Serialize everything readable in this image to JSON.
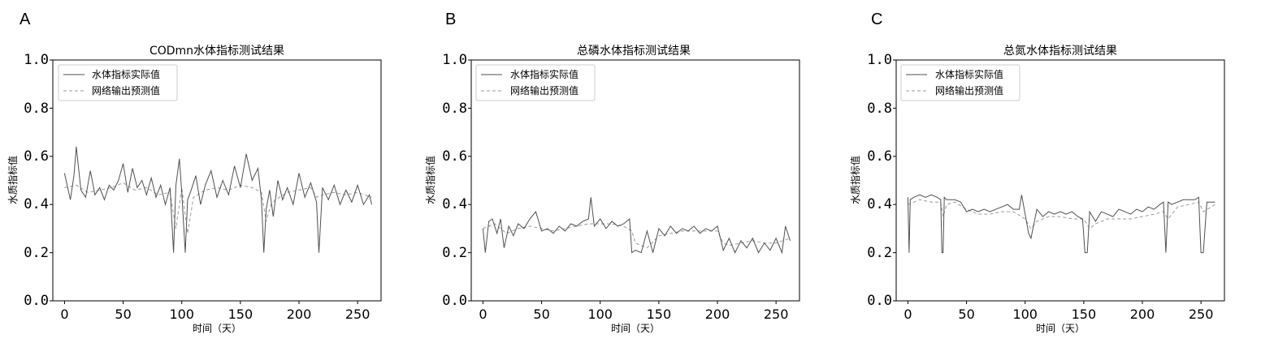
{
  "panels": [
    {
      "letter": "A",
      "title": "CODmn水体指标测试结果"
    },
    {
      "letter": "B",
      "title": "总磷水体指标测试结果"
    },
    {
      "letter": "C",
      "title": "总氮水体指标测试结果"
    }
  ],
  "legend": {
    "actual": "水体指标实际值",
    "predicted": "网络输出预测值"
  },
  "colors": {
    "actual": "#505050",
    "predicted": "#9a9a9a",
    "axis": "#000000"
  },
  "chart_data": [
    {
      "type": "line",
      "title": "CODmn水体指标测试结果",
      "xlabel": "时间（天）",
      "ylabel": "水质指标值",
      "xlim": [
        -10,
        270
      ],
      "ylim": [
        0.0,
        1.0
      ],
      "xticks": [
        0,
        50,
        100,
        150,
        200,
        250
      ],
      "yticks": [
        "0.0",
        "0.2",
        "0.4",
        "0.6",
        "0.8",
        "1.0"
      ],
      "legend_position": "top-left",
      "series": [
        {
          "name": "水体指标实际值",
          "style": "solid",
          "x": [
            0,
            5,
            8,
            10,
            14,
            18,
            22,
            26,
            30,
            34,
            38,
            42,
            46,
            50,
            54,
            58,
            62,
            66,
            70,
            74,
            78,
            82,
            86,
            90,
            93,
            95,
            98,
            100,
            103,
            105,
            108,
            112,
            116,
            120,
            125,
            130,
            135,
            140,
            145,
            150,
            155,
            160,
            165,
            168,
            170,
            172,
            175,
            178,
            182,
            186,
            190,
            195,
            200,
            205,
            210,
            215,
            217,
            220,
            225,
            230,
            235,
            240,
            245,
            250,
            255,
            260,
            262
          ],
          "y": [
            0.53,
            0.42,
            0.52,
            0.64,
            0.46,
            0.43,
            0.54,
            0.44,
            0.47,
            0.42,
            0.48,
            0.46,
            0.5,
            0.57,
            0.45,
            0.55,
            0.47,
            0.5,
            0.44,
            0.51,
            0.43,
            0.48,
            0.4,
            0.47,
            0.2,
            0.48,
            0.59,
            0.45,
            0.2,
            0.42,
            0.46,
            0.52,
            0.4,
            0.48,
            0.54,
            0.43,
            0.5,
            0.44,
            0.56,
            0.47,
            0.61,
            0.5,
            0.55,
            0.42,
            0.2,
            0.38,
            0.46,
            0.35,
            0.5,
            0.42,
            0.47,
            0.4,
            0.53,
            0.43,
            0.49,
            0.41,
            0.2,
            0.47,
            0.42,
            0.48,
            0.4,
            0.46,
            0.41,
            0.48,
            0.4,
            0.44,
            0.4
          ]
        },
        {
          "name": "网络输出预测值",
          "style": "dashed",
          "x": [
            0,
            10,
            20,
            30,
            40,
            50,
            60,
            70,
            80,
            90,
            95,
            100,
            105,
            110,
            120,
            130,
            140,
            150,
            160,
            168,
            172,
            176,
            180,
            190,
            200,
            210,
            215,
            220,
            230,
            240,
            250,
            262
          ],
          "y": [
            0.47,
            0.48,
            0.45,
            0.46,
            0.47,
            0.49,
            0.46,
            0.47,
            0.44,
            0.45,
            0.3,
            0.47,
            0.28,
            0.43,
            0.46,
            0.47,
            0.46,
            0.48,
            0.47,
            0.45,
            0.33,
            0.4,
            0.42,
            0.45,
            0.46,
            0.47,
            0.43,
            0.44,
            0.45,
            0.44,
            0.45,
            0.43
          ]
        }
      ]
    },
    {
      "type": "line",
      "title": "总磷水体指标测试结果",
      "xlabel": "时间（天）",
      "ylabel": "水质指标值",
      "xlim": [
        -10,
        270
      ],
      "ylim": [
        0.0,
        1.0
      ],
      "xticks": [
        0,
        50,
        100,
        150,
        200,
        250
      ],
      "yticks": [
        "0.0",
        "0.2",
        "0.4",
        "0.6",
        "0.8",
        "1.0"
      ],
      "legend_position": "top-left",
      "series": [
        {
          "name": "水体指标实际值",
          "style": "solid",
          "x": [
            0,
            2,
            5,
            8,
            12,
            15,
            18,
            22,
            26,
            30,
            35,
            40,
            45,
            50,
            55,
            60,
            65,
            70,
            75,
            80,
            85,
            90,
            92,
            95,
            100,
            105,
            110,
            115,
            120,
            125,
            127,
            130,
            135,
            140,
            145,
            150,
            155,
            160,
            165,
            170,
            175,
            180,
            185,
            190,
            195,
            200,
            205,
            210,
            215,
            220,
            225,
            230,
            235,
            240,
            245,
            250,
            255,
            258,
            262
          ],
          "y": [
            0.3,
            0.2,
            0.33,
            0.34,
            0.28,
            0.34,
            0.22,
            0.31,
            0.27,
            0.32,
            0.3,
            0.34,
            0.37,
            0.29,
            0.3,
            0.28,
            0.31,
            0.29,
            0.32,
            0.31,
            0.33,
            0.34,
            0.43,
            0.31,
            0.34,
            0.3,
            0.33,
            0.31,
            0.32,
            0.34,
            0.2,
            0.21,
            0.2,
            0.29,
            0.2,
            0.3,
            0.27,
            0.31,
            0.28,
            0.3,
            0.29,
            0.31,
            0.28,
            0.3,
            0.29,
            0.31,
            0.21,
            0.26,
            0.2,
            0.25,
            0.22,
            0.26,
            0.2,
            0.24,
            0.21,
            0.26,
            0.2,
            0.31,
            0.25
          ]
        },
        {
          "name": "网络输出预测值",
          "style": "dashed",
          "x": [
            0,
            10,
            20,
            30,
            40,
            50,
            60,
            70,
            80,
            90,
            100,
            110,
            120,
            127,
            130,
            140,
            150,
            160,
            170,
            180,
            190,
            200,
            205,
            210,
            220,
            230,
            240,
            250,
            262
          ],
          "y": [
            0.3,
            0.32,
            0.28,
            0.3,
            0.31,
            0.3,
            0.29,
            0.3,
            0.31,
            0.32,
            0.32,
            0.32,
            0.31,
            0.29,
            0.24,
            0.22,
            0.27,
            0.28,
            0.29,
            0.29,
            0.29,
            0.29,
            0.24,
            0.23,
            0.24,
            0.25,
            0.24,
            0.24,
            0.26
          ]
        }
      ]
    },
    {
      "type": "line",
      "title": "总氮水体指标测试结果",
      "xlabel": "时间（天）",
      "ylabel": "水质指标值",
      "xlim": [
        -10,
        270
      ],
      "ylim": [
        0.0,
        1.0
      ],
      "xticks": [
        0,
        50,
        100,
        150,
        200,
        250
      ],
      "yticks": [
        "0.0",
        "0.2",
        "0.4",
        "0.6",
        "0.8",
        "1.0"
      ],
      "legend_position": "top-left",
      "series": [
        {
          "name": "水体指标实际值",
          "style": "solid",
          "x": [
            0,
            1,
            2,
            5,
            10,
            15,
            20,
            25,
            28,
            29,
            30,
            31,
            33,
            40,
            45,
            50,
            55,
            60,
            65,
            70,
            75,
            80,
            85,
            90,
            95,
            97,
            100,
            103,
            105,
            110,
            115,
            120,
            125,
            130,
            135,
            140,
            145,
            149,
            151,
            153,
            155,
            160,
            165,
            170,
            175,
            180,
            185,
            190,
            195,
            200,
            205,
            210,
            215,
            218,
            220,
            222,
            225,
            230,
            235,
            240,
            245,
            248,
            250,
            252,
            255,
            262
          ],
          "y": [
            0.43,
            0.2,
            0.42,
            0.43,
            0.44,
            0.43,
            0.44,
            0.43,
            0.42,
            0.2,
            0.2,
            0.43,
            0.42,
            0.42,
            0.41,
            0.37,
            0.38,
            0.37,
            0.38,
            0.37,
            0.38,
            0.39,
            0.4,
            0.38,
            0.38,
            0.44,
            0.36,
            0.28,
            0.26,
            0.38,
            0.35,
            0.37,
            0.36,
            0.37,
            0.36,
            0.37,
            0.35,
            0.34,
            0.2,
            0.2,
            0.37,
            0.33,
            0.37,
            0.36,
            0.35,
            0.38,
            0.37,
            0.36,
            0.38,
            0.37,
            0.39,
            0.38,
            0.4,
            0.41,
            0.2,
            0.41,
            0.4,
            0.41,
            0.42,
            0.42,
            0.42,
            0.43,
            0.2,
            0.2,
            0.41,
            0.41
          ]
        },
        {
          "name": "网络输出预测值",
          "style": "dashed",
          "x": [
            0,
            10,
            20,
            28,
            30,
            33,
            40,
            50,
            60,
            70,
            80,
            90,
            100,
            105,
            110,
            120,
            130,
            140,
            150,
            155,
            160,
            170,
            180,
            190,
            200,
            210,
            218,
            222,
            230,
            240,
            248,
            252,
            262
          ],
          "y": [
            0.4,
            0.42,
            0.41,
            0.41,
            0.35,
            0.4,
            0.41,
            0.38,
            0.36,
            0.36,
            0.37,
            0.37,
            0.34,
            0.3,
            0.33,
            0.35,
            0.35,
            0.34,
            0.34,
            0.3,
            0.32,
            0.34,
            0.34,
            0.34,
            0.35,
            0.36,
            0.37,
            0.34,
            0.39,
            0.4,
            0.41,
            0.37,
            0.4
          ]
        }
      ]
    }
  ]
}
